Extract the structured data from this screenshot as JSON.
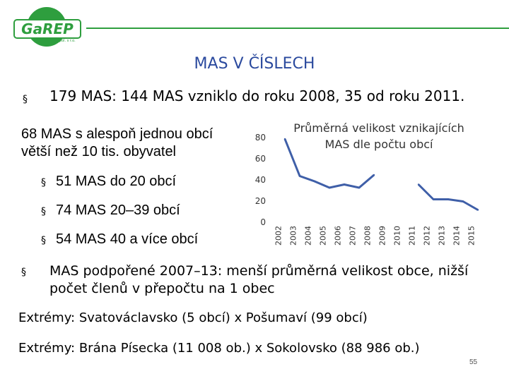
{
  "logo": {
    "text": "GaREP",
    "subtext": "spol. s r.o."
  },
  "slide": {
    "title": "MAS V ČÍSLECH",
    "bullet1": "179 MAS: 144 MAS vzniklo do roku 2008, 35 od roku 2011.",
    "para68_line1": "68 MAS s alespoň jednou obcí",
    "para68_line2": "větší než 10 tis. obyvatel",
    "sub_items": [
      "51 MAS do 20 obcí",
      "74 MAS 20–39 obcí",
      "54 MAS 40 a více obcí"
    ],
    "bullet_symbol": "§",
    "bullet2_line1": "MAS podpořené 2007–13: menší průměrná velikost obce, nižší",
    "bullet2_line2": "počet členů v přepočtu na 1 obec",
    "extreme1": "Extrémy: Svatováclavsko (5 obcí) x Pošumaví (99 obcí)",
    "extreme2": "Extrémy: Brána Písecka (11 008 ob.) x Sokolovsko (88 986 ob.)",
    "page_number": "55"
  },
  "colors": {
    "accent_green": "#2e9e3e",
    "title_blue": "#2b4a9e",
    "line_blue": "#3f5fa8"
  },
  "chart_data": {
    "type": "line",
    "title_line1": "Průměrná velikost vznikajících",
    "title_line2": "MAS dle počtu obcí",
    "x": [
      "2002",
      "2003",
      "2004",
      "2005",
      "2006",
      "2007",
      "2008",
      "2009",
      "2010",
      "2011",
      "2012",
      "2013",
      "2014",
      "2015"
    ],
    "series": [
      {
        "values": [
          78,
          43,
          38,
          32,
          35,
          32,
          44,
          null,
          null,
          35,
          21,
          21,
          19,
          11
        ]
      }
    ],
    "ylim": [
      0,
      80
    ],
    "yticks": [
      "0",
      "20",
      "40",
      "60",
      "80"
    ],
    "grid": false
  }
}
